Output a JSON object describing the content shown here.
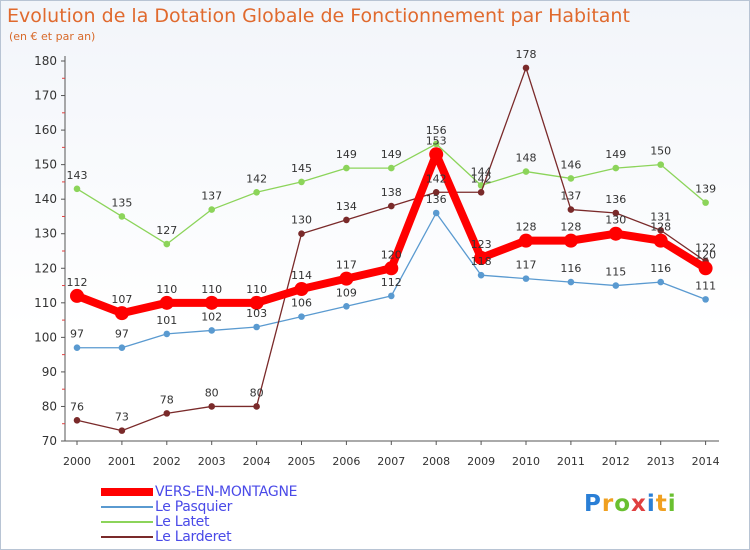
{
  "chart_data": {
    "type": "line",
    "title": "Evolution de la Dotation Globale de Fonctionnement par Habitant",
    "subtitle": "(en € et par an)",
    "x": [
      "2000",
      "2001",
      "2002",
      "2003",
      "2004",
      "2005",
      "2006",
      "2007",
      "2008",
      "2009",
      "2010",
      "2011",
      "2012",
      "2013",
      "2014"
    ],
    "ylim": [
      70,
      180
    ],
    "yticks": [
      70,
      80,
      90,
      100,
      110,
      120,
      130,
      140,
      150,
      160,
      170,
      180
    ],
    "grid": false,
    "legend_position": "bottom-left",
    "series": [
      {
        "name": "VERS-EN-MONTAGNE",
        "color": "#ff0000",
        "values": [
          112,
          107,
          110,
          110,
          110,
          114,
          117,
          120,
          153,
          123,
          128,
          128,
          130,
          128,
          120
        ]
      },
      {
        "name": "Le Pasquier",
        "color": "#5a9ad0",
        "values": [
          97,
          97,
          101,
          102,
          103,
          106,
          109,
          112,
          136,
          118,
          117,
          116,
          115,
          116,
          111
        ]
      },
      {
        "name": "Le Latet",
        "color": "#8cd45a",
        "values": [
          143,
          135,
          127,
          137,
          142,
          145,
          149,
          149,
          156,
          144,
          148,
          146,
          149,
          150,
          139
        ]
      },
      {
        "name": "Le Larderet",
        "color": "#7a2a2a",
        "values": [
          76,
          73,
          78,
          80,
          80,
          130,
          134,
          138,
          142,
          142,
          178,
          137,
          136,
          131,
          122
        ]
      }
    ]
  },
  "logo": {
    "letters": [
      "P",
      "r",
      "o",
      "x",
      "i",
      "t",
      "i"
    ],
    "colors": [
      "#2a7fd6",
      "#f0a020",
      "#6ac030",
      "#e04040",
      "#2a7fd6",
      "#f0a020",
      "#6ac030"
    ]
  }
}
